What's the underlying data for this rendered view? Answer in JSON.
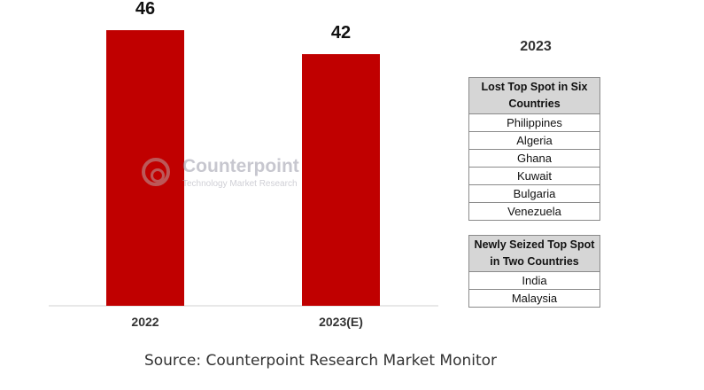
{
  "chart_data": {
    "type": "bar",
    "categories": [
      "2022",
      "2023(E)"
    ],
    "values": [
      46,
      42
    ],
    "data_labels": [
      "46",
      "42"
    ],
    "bar_color": "#c00000",
    "title": "",
    "xlabel": "",
    "ylabel": "",
    "ylim": [
      0,
      50
    ],
    "grid": false,
    "legend": "none"
  },
  "watermark": {
    "name": "Counterpoint",
    "tagline": "Technology Market Research"
  },
  "side_panel": {
    "title": "2023",
    "lost_table": {
      "header": "Lost Top Spot in Six Countries",
      "rows": [
        "Philippines",
        "Algeria",
        "Ghana",
        "Kuwait",
        "Bulgaria",
        "Venezuela"
      ]
    },
    "seized_table": {
      "header": "Newly Seized Top Spot in Two Countries",
      "rows": [
        "India",
        "Malaysia"
      ]
    }
  },
  "source": "Source: Counterpoint Research Market Monitor",
  "colors": {
    "bar": "#c00000",
    "header_bg": "#d6d6d6",
    "axis": "#d0d0d0"
  }
}
